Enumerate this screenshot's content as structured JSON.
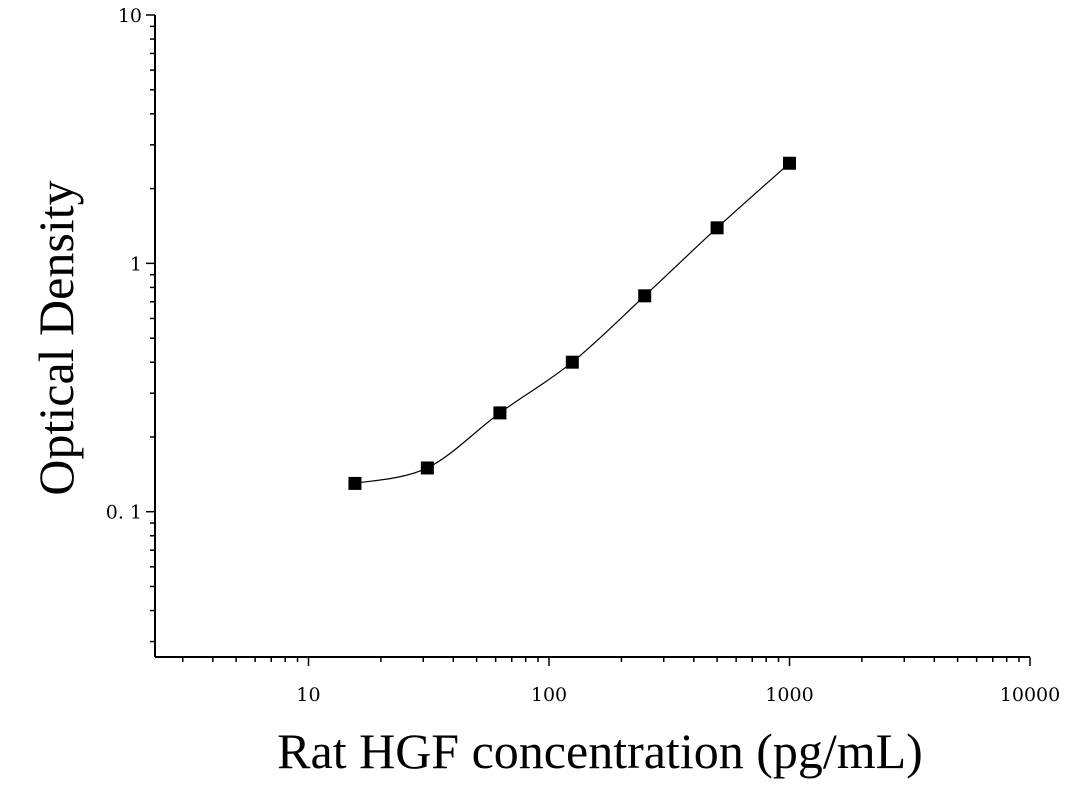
{
  "chart_data": {
    "type": "scatter",
    "xlabel": "Rat HGF concentration (pg/mL)",
    "ylabel": "Optical Density",
    "xscale": "log",
    "yscale": "log",
    "xlim": [
      2.3,
      10000
    ],
    "ylim": [
      0.026,
      10
    ],
    "x_ticks": [
      {
        "value": 10,
        "label": "10"
      },
      {
        "value": 100,
        "label": "100"
      },
      {
        "value": 1000,
        "label": "1000"
      },
      {
        "value": 10000,
        "label": "10000"
      }
    ],
    "y_ticks": [
      {
        "value": 0.1,
        "label": "0. 1"
      },
      {
        "value": 1,
        "label": "1"
      },
      {
        "value": 10,
        "label": "10"
      }
    ],
    "grid": false,
    "legend": "none",
    "marker": "square",
    "marker_color": "#000000",
    "line_color": "#000000",
    "series": [
      {
        "x": [
          15.6,
          31.2,
          62.5,
          125,
          250,
          500,
          1000
        ],
        "y": [
          0.13,
          0.15,
          0.25,
          0.4,
          0.74,
          1.39,
          2.53
        ]
      }
    ]
  }
}
